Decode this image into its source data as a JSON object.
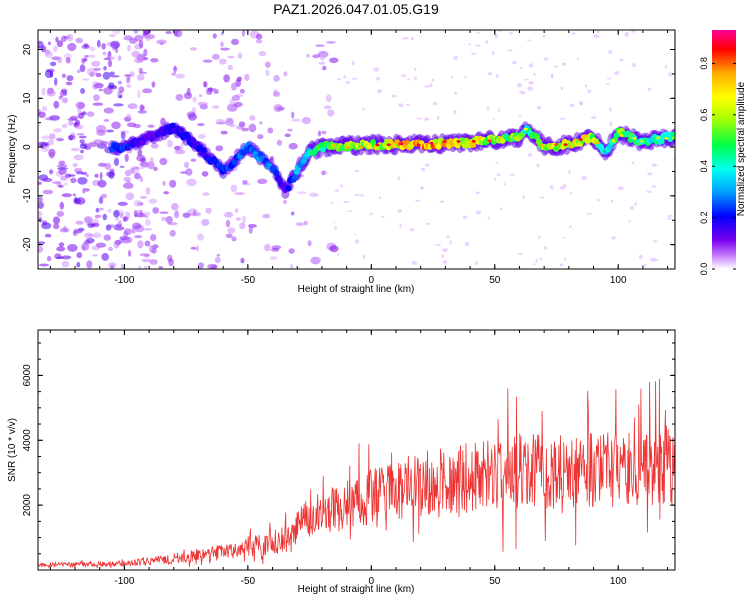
{
  "title": "PAZ1.2026.047.01.05.G19",
  "chart_data": [
    {
      "type": "heatmap",
      "xlabel": "Height of straight line (km)",
      "ylabel": "Frequency (Hz)",
      "xlim": [
        -135,
        123
      ],
      "ylim": [
        -25,
        24
      ],
      "xticks": [
        -100,
        -50,
        0,
        50,
        100
      ],
      "yticks": [
        -20,
        -10,
        0,
        10,
        20
      ],
      "colorbar": {
        "label": "Normalized spectral amplitude",
        "range": [
          0.0,
          0.93
        ],
        "ticks": [
          "0.0",
          "0.2",
          "0.4",
          "0.6",
          "0.8"
        ]
      },
      "ridge": {
        "x": [
          -100,
          -90,
          -80,
          -70,
          -60,
          -50,
          -40,
          -35,
          -30,
          -25,
          -20,
          0,
          20,
          40,
          50,
          60,
          63,
          70,
          80,
          90,
          95,
          100,
          110,
          120
        ],
        "frequency": [
          0,
          2,
          4,
          0,
          -5,
          0,
          -4,
          -9,
          -5,
          -1,
          0,
          0.5,
          0.5,
          1,
          1.5,
          2,
          4,
          0,
          0.5,
          2,
          -1,
          3,
          1,
          2
        ],
        "amplitude": [
          0.25,
          0.15,
          0.2,
          0.2,
          0.25,
          0.3,
          0.3,
          0.15,
          0.35,
          0.45,
          0.55,
          0.7,
          0.85,
          0.75,
          0.65,
          0.6,
          0.5,
          0.65,
          0.75,
          0.7,
          0.4,
          0.6,
          0.5,
          0.45
        ]
      }
    },
    {
      "type": "line",
      "xlabel": "Height of straight line (km)",
      "ylabel": "SNR (10 * v/v)",
      "xlim": [
        -135,
        123
      ],
      "ylim": [
        0,
        7400
      ],
      "xticks": [
        -100,
        -50,
        0,
        50,
        100
      ],
      "yticks": [
        2000,
        4000,
        6000
      ],
      "color": "#ee3333",
      "trend": {
        "x": [
          -135,
          -100,
          -80,
          -60,
          -40,
          -31,
          -30,
          -20,
          0,
          20,
          40,
          60,
          80,
          100,
          110,
          123
        ],
        "y": [
          150,
          200,
          350,
          550,
          850,
          1000,
          1450,
          1750,
          2250,
          2650,
          2850,
          3050,
          3050,
          3100,
          3050,
          3200
        ]
      }
    }
  ]
}
